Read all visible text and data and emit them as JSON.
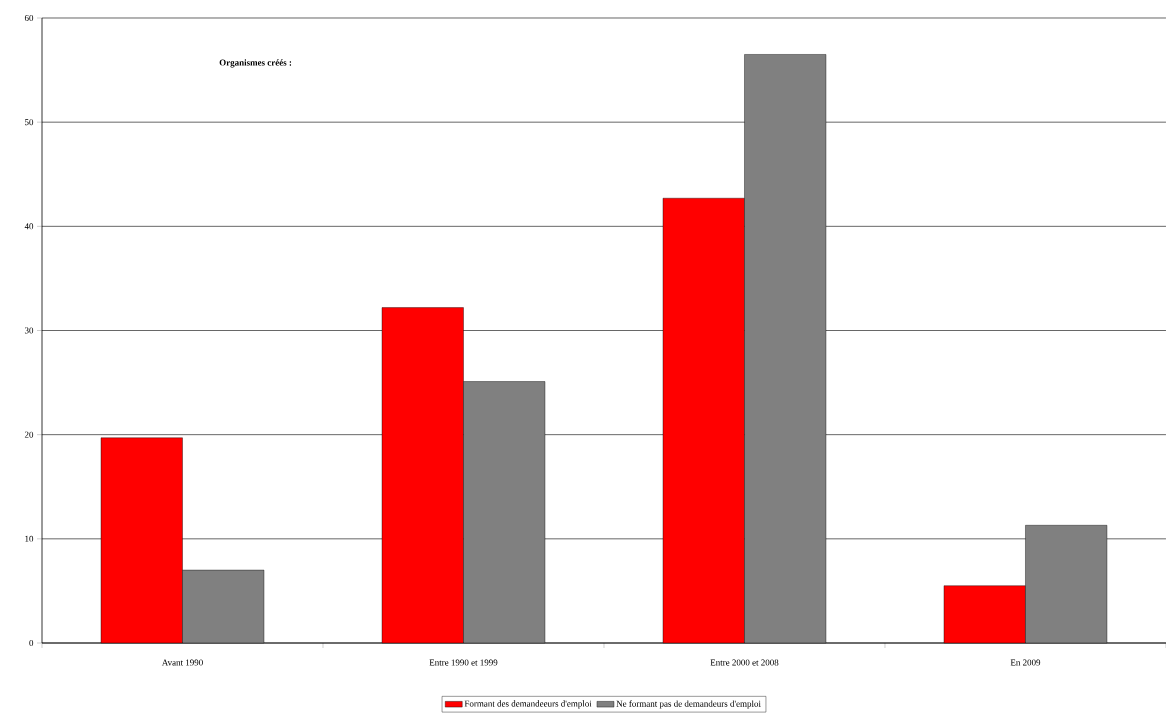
{
  "chart_data": {
    "type": "bar",
    "title": "Organismes créés :",
    "categories": [
      "Avant 1990",
      "Entre 1990 et 1999",
      "Entre 2000 et 2008",
      "En 2009"
    ],
    "series": [
      {
        "name": "Formant des demandeeurs d'emploi",
        "color": "#ff0000",
        "values": [
          19.7,
          32.2,
          42.7,
          5.5
        ]
      },
      {
        "name": "Ne formant pas de demandeurs d'emploi",
        "color": "#808080",
        "values": [
          7.0,
          25.1,
          56.5,
          11.3
        ]
      }
    ],
    "ylim": [
      0,
      60
    ],
    "yticks": [
      0,
      10,
      20,
      30,
      40,
      50,
      60
    ],
    "grid": "y",
    "legend": "bottom"
  }
}
